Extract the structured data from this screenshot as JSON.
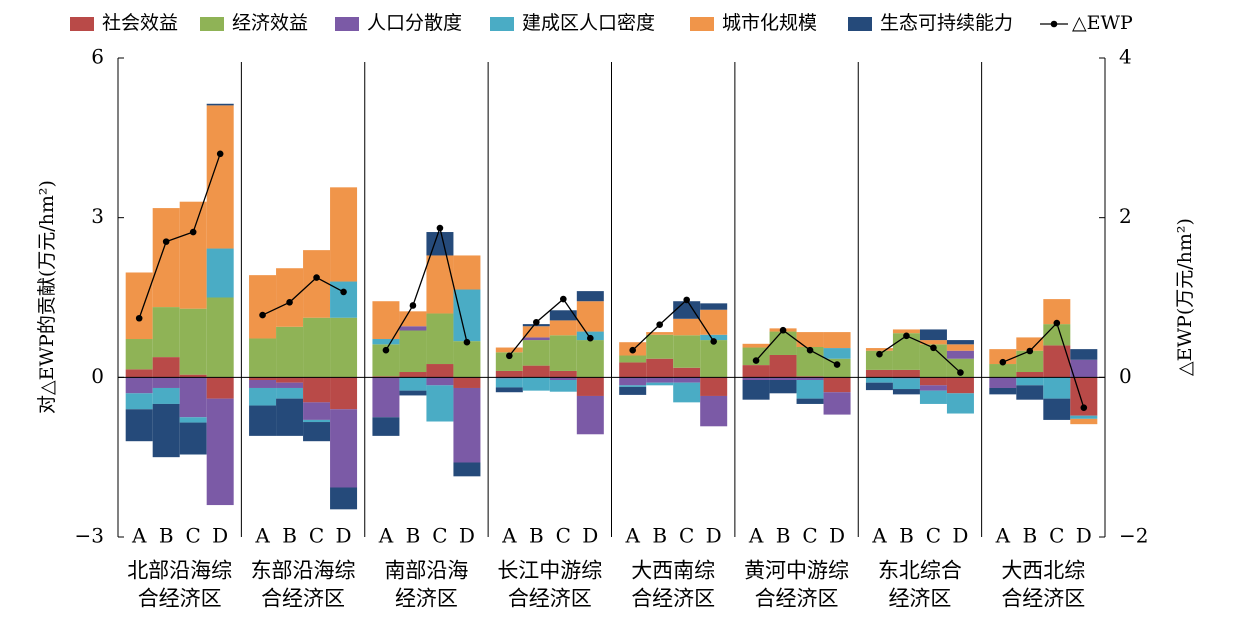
{
  "chart_data": {
    "type": "stacked_bar_line",
    "ylabel": "对△EWP的贡献(万元/hm²)",
    "y2label": "△EWP(万元/hm²)",
    "ylim": [
      -3,
      6
    ],
    "yticks": [
      {
        "value": -3,
        "label": "−3"
      },
      0,
      3,
      6
    ],
    "y2lim": [
      -2,
      4
    ],
    "y2ticks": [
      {
        "value": -2,
        "label": "−2"
      },
      0,
      2,
      4
    ],
    "negative_tick_color": "#d7191c",
    "group_labels": [
      [
        "北部沿海综",
        "合经济区"
      ],
      [
        "东部沿海综",
        "合经济区"
      ],
      [
        "南部沿海",
        "经济区"
      ],
      [
        "长江中游综",
        "合经济区"
      ],
      [
        "大西南综",
        "合经济区"
      ],
      [
        "黄河中游综",
        "合经济区"
      ],
      [
        "东北综合",
        "经济区"
      ],
      [
        "大西北综",
        "合经济区"
      ]
    ],
    "categories": [
      "A",
      "B",
      "C",
      "D",
      "A",
      "B",
      "C",
      "D",
      "A",
      "B",
      "C",
      "D",
      "A",
      "B",
      "C",
      "D",
      "A",
      "B",
      "C",
      "D",
      "A",
      "B",
      "C",
      "D",
      "A",
      "B",
      "C",
      "D",
      "A",
      "B",
      "C",
      "D"
    ],
    "series": [
      {
        "name": "社会效益",
        "color": "#b94a48",
        "values": [
          0.15,
          0.38,
          0.05,
          -0.4,
          -0.05,
          -0.1,
          -0.47,
          -0.6,
          0.02,
          0.1,
          0.25,
          -0.2,
          0.12,
          0.22,
          0.12,
          -0.35,
          0.28,
          0.35,
          0.18,
          -0.35,
          0.23,
          0.42,
          0.02,
          -0.28,
          0.14,
          0.14,
          -0.15,
          -0.3,
          0,
          0.1,
          0.6,
          -0.72
        ]
      },
      {
        "name": "经济效益",
        "color": "#8fb356",
        "values": [
          0.57,
          0.94,
          1.24,
          1.5,
          0.73,
          0.95,
          1.12,
          1.12,
          0.6,
          0.78,
          0.95,
          0.68,
          0.35,
          0.48,
          0.67,
          0.7,
          0.13,
          0.45,
          0.61,
          0.7,
          0.33,
          0.44,
          0.55,
          0.35,
          0.36,
          0.69,
          0.62,
          0.35,
          0.25,
          0.4,
          0.4,
          0
        ]
      },
      {
        "name": "人口分散度",
        "color": "#7b5aa6",
        "values": [
          -0.3,
          -0.2,
          -0.75,
          -2.0,
          -0.15,
          -0.1,
          -0.33,
          -1.47,
          -0.75,
          0.08,
          -0.15,
          -1.4,
          -0.02,
          0.05,
          -0.05,
          -0.72,
          -0.15,
          -0.1,
          -0.1,
          -0.57,
          -0.05,
          -0.05,
          -0.05,
          -0.42,
          0,
          -0.02,
          -0.1,
          0.15,
          -0.2,
          0,
          0,
          0.33
        ]
      },
      {
        "name": "建成区人口密度",
        "color": "#4aacc5",
        "values": [
          -0.3,
          -0.3,
          -0.1,
          0.92,
          -0.33,
          -0.2,
          -0.04,
          0.68,
          0.1,
          -0.25,
          -0.68,
          0.97,
          -0.17,
          -0.25,
          -0.22,
          0.16,
          -0.03,
          -0.05,
          -0.37,
          0.1,
          0,
          0,
          -0.35,
          0.2,
          -0.1,
          -0.2,
          -0.25,
          -0.38,
          0,
          -0.15,
          -0.4,
          -0.06
        ]
      },
      {
        "name": "城市化规模",
        "color": "#f0954a",
        "values": [
          1.25,
          1.86,
          2.01,
          2.69,
          1.19,
          1.1,
          1.27,
          1.77,
          0.71,
          0.28,
          1.09,
          0.64,
          0.09,
          0.21,
          0.28,
          0.57,
          0.25,
          0.05,
          0.31,
          0.47,
          0.07,
          0.06,
          0.28,
          0.3,
          0.05,
          0.07,
          0.08,
          0.12,
          0.28,
          0.25,
          0.47,
          -0.1
        ]
      },
      {
        "name": "生态可持续能力",
        "color": "#254a7a",
        "values": [
          -0.6,
          -1.0,
          -0.6,
          0.03,
          -0.57,
          -0.7,
          -0.36,
          -0.41,
          -0.35,
          -0.09,
          0.44,
          -0.26,
          -0.09,
          0.04,
          0.19,
          0.19,
          -0.15,
          0,
          0.33,
          0.12,
          -0.37,
          -0.25,
          -0.1,
          0,
          -0.14,
          -0.1,
          0.2,
          0.08,
          -0.12,
          -0.27,
          -0.4,
          0.2
        ]
      },
      {
        "name": "△EWP",
        "color": "#000000",
        "axis": "y2",
        "type": "line",
        "values": [
          0.74,
          1.7,
          1.82,
          2.8,
          0.78,
          0.94,
          1.25,
          1.07,
          0.34,
          0.9,
          1.87,
          0.44,
          0.27,
          0.69,
          0.98,
          0.49,
          0.34,
          0.66,
          0.97,
          0.45,
          0.21,
          0.59,
          0.34,
          0.16,
          0.29,
          0.52,
          0.37,
          0.06,
          0.19,
          0.33,
          0.68,
          -0.38
        ]
      }
    ]
  }
}
